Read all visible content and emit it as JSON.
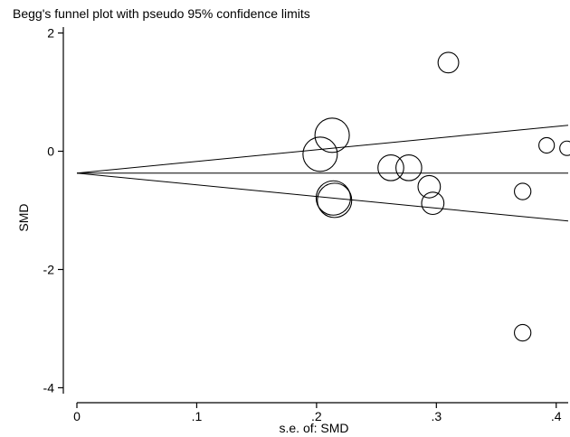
{
  "chart_data": {
    "type": "scatter",
    "title": "Begg's funnel plot with pseudo 95% confidence limits",
    "xlabel": "s.e. of: SMD",
    "ylabel": "SMD",
    "xlim": [
      0,
      0.41
    ],
    "ylim": [
      -4.1,
      2.1
    ],
    "x_ticks": [
      0,
      0.1,
      0.2,
      0.3,
      0.4
    ],
    "x_tick_labels": [
      "0",
      ".1",
      ".2",
      ".3",
      ".4"
    ],
    "y_ticks": [
      2,
      0,
      -2,
      -4
    ],
    "y_tick_labels": [
      "2",
      "0",
      "-2",
      "-4"
    ],
    "grid": false,
    "pooled_estimate": -0.37,
    "confidence_limits": {
      "upper": [
        [
          0,
          -0.37
        ],
        [
          0.41,
          0.44
        ]
      ],
      "lower": [
        [
          0,
          -0.37
        ],
        [
          0.41,
          -1.18
        ]
      ]
    },
    "points": [
      {
        "x": 0.213,
        "y": 0.27,
        "weight": 1.0
      },
      {
        "x": 0.203,
        "y": -0.05,
        "weight": 1.0
      },
      {
        "x": 0.214,
        "y": -0.79,
        "weight": 1.0
      },
      {
        "x": 0.215,
        "y": -0.83,
        "weight": 1.0
      },
      {
        "x": 0.262,
        "y": -0.28,
        "weight": 0.75
      },
      {
        "x": 0.277,
        "y": -0.28,
        "weight": 0.75
      },
      {
        "x": 0.294,
        "y": -0.6,
        "weight": 0.65
      },
      {
        "x": 0.297,
        "y": -0.88,
        "weight": 0.65
      },
      {
        "x": 0.31,
        "y": 1.5,
        "weight": 0.6
      },
      {
        "x": 0.372,
        "y": -0.68,
        "weight": 0.48
      },
      {
        "x": 0.372,
        "y": -3.07,
        "weight": 0.48
      },
      {
        "x": 0.392,
        "y": 0.1,
        "weight": 0.45
      },
      {
        "x": 0.409,
        "y": 0.05,
        "weight": 0.42
      }
    ]
  }
}
